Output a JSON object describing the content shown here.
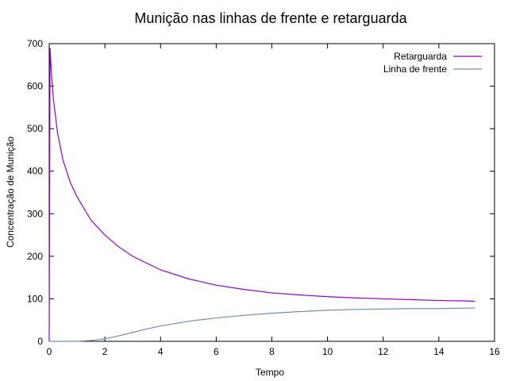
{
  "chart_data": {
    "type": "line",
    "title": "Munição nas linhas de frente e retarguarda",
    "xlabel": "Tempo",
    "ylabel": "Concentração de Munição",
    "xlim": [
      0,
      16
    ],
    "ylim": [
      0,
      700
    ],
    "x_ticks": [
      0,
      2,
      4,
      6,
      8,
      10,
      12,
      14,
      16
    ],
    "y_ticks": [
      0,
      100,
      200,
      300,
      400,
      500,
      600,
      700
    ],
    "grid": false,
    "legend_position": "top-right",
    "series": [
      {
        "name": "Retarguarda",
        "color": "#9400d3",
        "x": [
          0,
          0.03,
          0.08,
          0.15,
          0.3,
          0.5,
          0.75,
          1,
          1.5,
          2,
          2.5,
          3,
          4,
          5,
          6,
          7,
          8,
          9,
          10,
          11,
          12,
          13,
          14,
          15,
          15.3
        ],
        "y": [
          0,
          690,
          630,
          570,
          490,
          425,
          375,
          340,
          285,
          250,
          222,
          200,
          168,
          147,
          132,
          122,
          114,
          109,
          105,
          102,
          100,
          98,
          96,
          95,
          94
        ]
      },
      {
        "name": "Linha de frente",
        "color": "#6a8fb8",
        "x": [
          0,
          0.5,
          1,
          1.5,
          2,
          2.5,
          3,
          3.5,
          4,
          5,
          6,
          7,
          8,
          9,
          10,
          11,
          12,
          13,
          14,
          15,
          15.3
        ],
        "y": [
          0,
          0,
          0,
          2,
          6,
          13,
          21,
          29,
          36,
          47,
          55,
          61,
          66,
          70,
          73,
          75,
          76,
          77,
          77,
          78,
          78
        ]
      }
    ]
  }
}
